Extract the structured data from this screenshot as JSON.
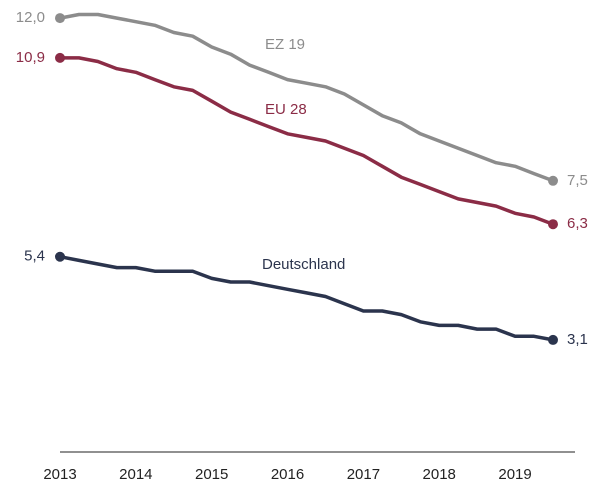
{
  "chart_data": {
    "type": "line",
    "x": [
      2013,
      2013.25,
      2013.5,
      2013.75,
      2014,
      2014.25,
      2014.5,
      2014.75,
      2015,
      2015.25,
      2015.5,
      2015.75,
      2016,
      2016.25,
      2016.5,
      2016.75,
      2017,
      2017.25,
      2017.5,
      2017.75,
      2018,
      2018.25,
      2018.5,
      2018.75,
      2019,
      2019.25,
      2019.5
    ],
    "xlim": [
      2013,
      2019.5
    ],
    "xticks": [
      2013,
      2014,
      2015,
      2016,
      2017,
      2018,
      2019
    ],
    "ylim": [
      0,
      12.5
    ],
    "series": [
      {
        "name": "EZ 19",
        "color": "#8c8c8c",
        "values": [
          12.0,
          12.1,
          12.1,
          12.0,
          11.9,
          11.8,
          11.6,
          11.5,
          11.2,
          11.0,
          10.7,
          10.5,
          10.3,
          10.2,
          10.1,
          9.9,
          9.6,
          9.3,
          9.1,
          8.8,
          8.6,
          8.4,
          8.2,
          8.0,
          7.9,
          7.7,
          7.5
        ],
        "value_labels": [
          "12,0",
          null,
          null,
          null,
          null,
          null,
          null,
          null,
          null,
          null,
          null,
          null,
          null,
          null,
          null,
          null,
          null,
          null,
          null,
          null,
          null,
          null,
          null,
          null,
          null,
          null,
          "7,5"
        ]
      },
      {
        "name": "EU 28",
        "color": "#8b2c46",
        "values": [
          10.9,
          10.9,
          10.8,
          10.6,
          10.5,
          10.3,
          10.1,
          10.0,
          9.7,
          9.4,
          9.2,
          9.0,
          8.8,
          8.7,
          8.6,
          8.4,
          8.2,
          7.9,
          7.6,
          7.4,
          7.2,
          7.0,
          6.9,
          6.8,
          6.6,
          6.5,
          6.3
        ],
        "value_labels": [
          "10,9",
          null,
          null,
          null,
          null,
          null,
          null,
          null,
          null,
          null,
          null,
          null,
          null,
          null,
          null,
          null,
          null,
          null,
          null,
          null,
          null,
          null,
          null,
          null,
          null,
          null,
          "6,3"
        ]
      },
      {
        "name": "Deutschland",
        "color": "#2b344d",
        "values": [
          5.4,
          5.3,
          5.2,
          5.1,
          5.1,
          5.0,
          5.0,
          5.0,
          4.8,
          4.7,
          4.7,
          4.6,
          4.5,
          4.4,
          4.3,
          4.1,
          3.9,
          3.9,
          3.8,
          3.6,
          3.5,
          3.5,
          3.4,
          3.4,
          3.2,
          3.2,
          3.1
        ],
        "value_labels": [
          "5,4",
          null,
          null,
          null,
          null,
          null,
          null,
          null,
          null,
          null,
          null,
          null,
          null,
          null,
          null,
          null,
          null,
          null,
          null,
          null,
          null,
          null,
          null,
          null,
          null,
          null,
          "3,1"
        ]
      }
    ]
  }
}
